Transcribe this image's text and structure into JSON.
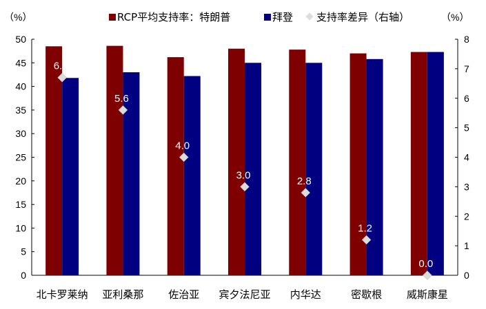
{
  "chart_data": {
    "type": "bar",
    "categories": [
      "北卡罗莱纳",
      "亚利桑那",
      "佐治亚",
      "宾夕法尼亚",
      "内华达",
      "密歇根",
      "威斯康星"
    ],
    "series": [
      {
        "name": "RCP平均支持率：特朗普",
        "type": "bar",
        "axis": "left",
        "color": "#7f0000",
        "values": [
          48.5,
          48.6,
          46.2,
          48.0,
          47.8,
          47.0,
          47.3
        ]
      },
      {
        "name": "拜登",
        "type": "bar",
        "axis": "left",
        "color": "#000080",
        "values": [
          41.8,
          43.0,
          42.2,
          45.0,
          45.0,
          45.8,
          47.3
        ]
      },
      {
        "name": "支持率差异（右轴）",
        "type": "scatter",
        "axis": "right",
        "color": "#dcdcdc",
        "values": [
          6.7,
          5.6,
          4.0,
          3.0,
          2.8,
          1.2,
          0.0
        ],
        "labels": [
          "6.7",
          "5.6",
          "4.0",
          "3.0",
          "2.8",
          "1.2",
          "0.0"
        ]
      }
    ],
    "left_axis": {
      "unit": "（%）",
      "min": 0,
      "max": 50,
      "step": 5,
      "ticks": [
        "0",
        "5",
        "10",
        "15",
        "20",
        "25",
        "30",
        "35",
        "40",
        "45",
        "50"
      ]
    },
    "right_axis": {
      "unit": "（%）",
      "min": 0,
      "max": 8,
      "step": 1,
      "ticks": [
        "0",
        "1",
        "2",
        "3",
        "4",
        "5",
        "6",
        "7",
        "8"
      ]
    },
    "legend_position": "top",
    "grid": false
  }
}
